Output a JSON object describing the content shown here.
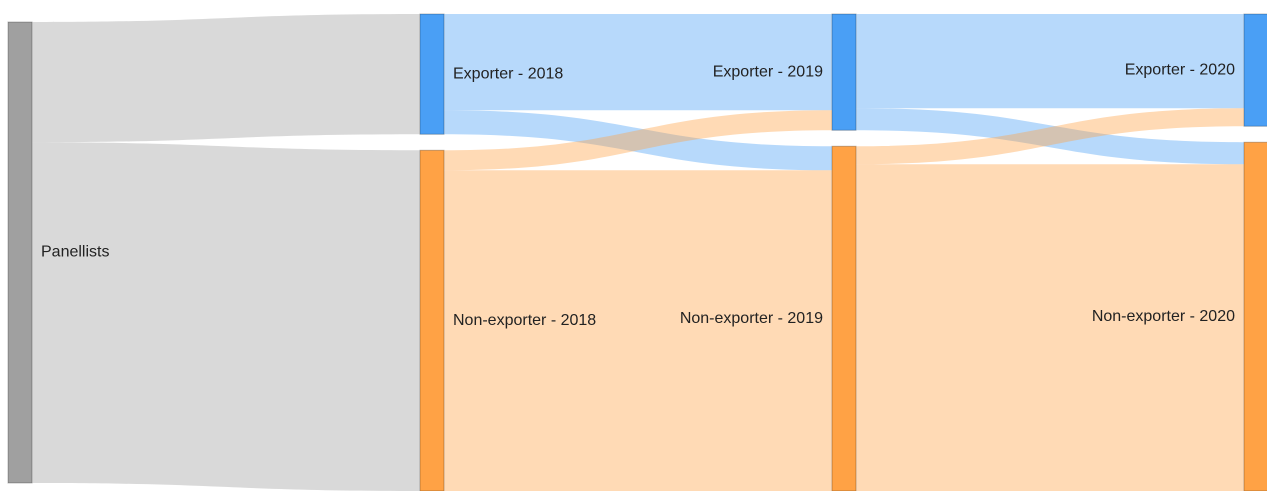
{
  "chart_data": {
    "type": "sankey",
    "nodes": [
      {
        "name": "Panellists",
        "column": 0,
        "color": "#a0a0a0"
      },
      {
        "name": "Exporter - 2018",
        "column": 1,
        "color": "#4a9ff5"
      },
      {
        "name": "Non-exporter - 2018",
        "column": 1,
        "color": "#ffa245"
      },
      {
        "name": "Exporter - 2019",
        "column": 2,
        "color": "#4a9ff5"
      },
      {
        "name": "Non-exporter - 2019",
        "column": 2,
        "color": "#ffa245"
      },
      {
        "name": "Exporter - 2020",
        "column": 3,
        "color": "#4a9ff5"
      },
      {
        "name": "Non-exporter - 2020",
        "column": 3,
        "color": "#ffa245"
      }
    ],
    "links": [
      {
        "source": 0,
        "target": 1,
        "value": 120
      },
      {
        "source": 0,
        "target": 2,
        "value": 340
      },
      {
        "source": 1,
        "target": 3,
        "value": 96
      },
      {
        "source": 1,
        "target": 4,
        "value": 24
      },
      {
        "source": 2,
        "target": 3,
        "value": 20
      },
      {
        "source": 2,
        "target": 4,
        "value": 320
      },
      {
        "source": 3,
        "target": 5,
        "value": 94
      },
      {
        "source": 3,
        "target": 6,
        "value": 22
      },
      {
        "source": 4,
        "target": 5,
        "value": 18
      },
      {
        "source": 4,
        "target": 6,
        "value": 326
      }
    ]
  }
}
